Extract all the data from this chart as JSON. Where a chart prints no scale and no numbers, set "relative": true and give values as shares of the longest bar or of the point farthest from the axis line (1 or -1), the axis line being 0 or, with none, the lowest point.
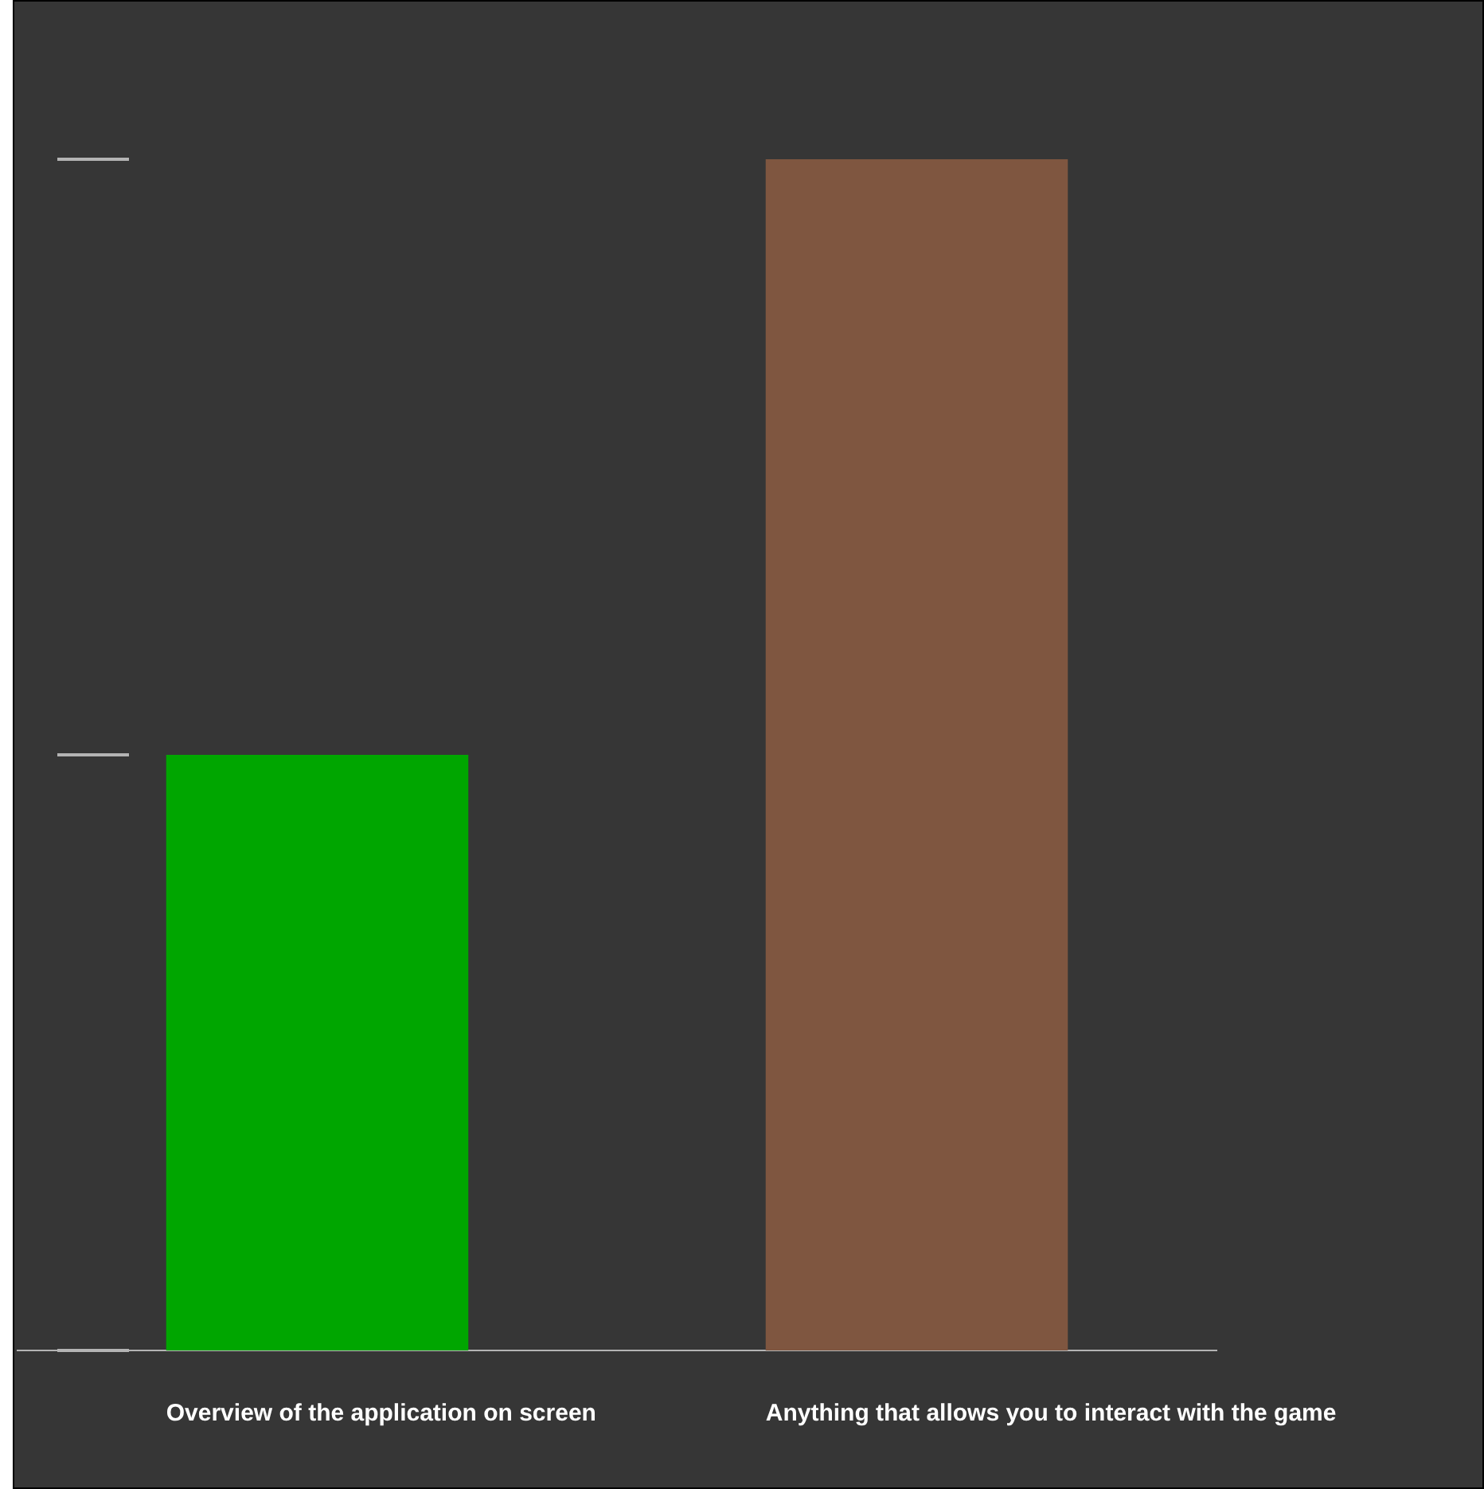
{
  "chart_data": {
    "type": "bar",
    "relative": true,
    "categories": [
      "Overview of the application on screen",
      "Anything that allows you to interact with the game"
    ],
    "values": [
      0.5,
      1
    ],
    "colors": [
      "#00a600",
      "#7f5640"
    ]
  }
}
